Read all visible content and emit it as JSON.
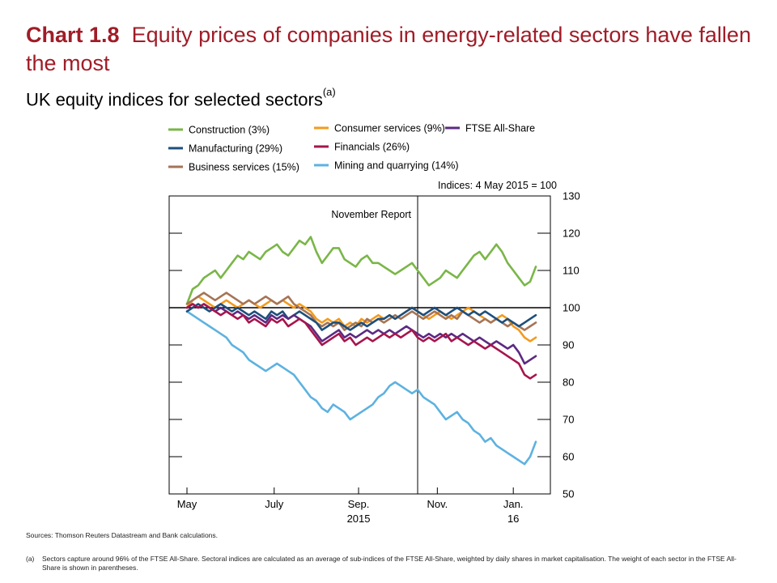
{
  "header": {
    "chart_number": "Chart 1.8",
    "title": "Equity prices of companies in energy-related sectors have fallen the most",
    "subtitle": "UK equity indices for selected sectors",
    "subtitle_note": "(a)"
  },
  "notes": {
    "sources": "Sources:  Thomson Reuters Datastream and Bank calculations.",
    "footnote_mark": "(a)",
    "footnote_text": "Sectors capture around 96% of the FTSE All-Share.  Sectoral indices are calculated as an average of sub-indices of the FTSE All-Share, weighted by daily shares in market capitalisation.  The weight of each sector in the FTSE All-Share is shown in parentheses."
  },
  "chart_data": {
    "type": "line",
    "x_unit": "week",
    "x_start": "2015-05-01",
    "units_label": "Indices:  4 May 2015 = 100",
    "annotation": "November Report",
    "annotation_x": 41,
    "ylim": [
      50,
      130
    ],
    "yticks": [
      50,
      60,
      70,
      80,
      90,
      100,
      110,
      120,
      130
    ],
    "xlim": [
      0,
      62
    ],
    "x_tick_labels": [
      {
        "x": 0,
        "label": "May"
      },
      {
        "x": 15.5,
        "label": "July"
      },
      {
        "x": 30.5,
        "label": "Sep."
      },
      {
        "x": 44.5,
        "label": "Nov."
      },
      {
        "x": 58,
        "label": "Jan."
      }
    ],
    "x_year_labels": [
      {
        "x": 30.5,
        "label": "2015"
      },
      {
        "x": 58,
        "label": "16"
      }
    ],
    "reference_line": 100,
    "legend_position": "top",
    "series": [
      {
        "name": "Construction (3%)",
        "color": "#7ab648",
        "values": [
          101,
          105,
          106,
          108,
          109,
          110,
          108,
          110,
          112,
          114,
          113,
          115,
          114,
          113,
          115,
          116,
          117,
          115,
          114,
          116,
          118,
          117,
          119,
          115,
          112,
          114,
          116,
          116,
          113,
          112,
          111,
          113,
          114,
          112,
          112,
          111,
          110,
          109,
          110,
          111,
          112,
          110,
          108,
          106,
          107,
          108,
          110,
          109,
          108,
          110,
          112,
          114,
          115,
          113,
          115,
          117,
          115,
          112,
          110,
          108,
          106,
          107,
          111
        ]
      },
      {
        "name": "Manufacturing (29%)",
        "color": "#1d4f7c",
        "values": [
          99,
          100,
          101,
          100,
          99,
          100,
          101,
          100,
          99,
          100,
          99,
          98,
          99,
          98,
          97,
          99,
          98,
          99,
          97,
          98,
          99,
          98,
          97,
          96,
          94,
          95,
          96,
          96,
          95,
          94,
          95,
          96,
          95,
          96,
          97,
          97,
          98,
          97,
          98,
          99,
          100,
          99,
          98,
          99,
          100,
          99,
          98,
          99,
          100,
          99,
          98,
          99,
          98,
          99,
          98,
          97,
          96,
          97,
          96,
          95,
          96,
          97,
          98
        ]
      },
      {
        "name": "Business services (15%)",
        "color": "#a57456",
        "values": [
          101,
          102,
          103,
          104,
          103,
          102,
          103,
          104,
          103,
          102,
          101,
          102,
          101,
          102,
          103,
          102,
          101,
          102,
          103,
          101,
          100,
          99,
          98,
          96,
          95,
          96,
          95,
          96,
          94,
          95,
          96,
          95,
          97,
          96,
          97,
          96,
          97,
          98,
          97,
          98,
          99,
          98,
          97,
          98,
          99,
          98,
          97,
          98,
          97,
          99,
          98,
          97,
          96,
          97,
          96,
          97,
          96,
          95,
          96,
          95,
          94,
          95,
          96
        ]
      },
      {
        "name": "Consumer services (9%)",
        "color": "#f39b1e",
        "values": [
          100,
          102,
          103,
          102,
          101,
          100,
          101,
          102,
          101,
          100,
          101,
          102,
          101,
          100,
          101,
          102,
          101,
          102,
          101,
          100,
          101,
          100,
          99,
          97,
          96,
          97,
          96,
          97,
          95,
          96,
          95,
          97,
          96,
          97,
          98,
          97,
          98,
          97,
          98,
          99,
          100,
          99,
          98,
          97,
          98,
          99,
          98,
          97,
          98,
          99,
          100,
          99,
          98,
          97,
          96,
          97,
          98,
          97,
          95,
          94,
          92,
          91,
          92
        ]
      },
      {
        "name": "Financials (26%)",
        "color": "#a6154d",
        "values": [
          100,
          101,
          100,
          101,
          100,
          99,
          98,
          99,
          98,
          97,
          98,
          96,
          97,
          96,
          95,
          97,
          96,
          97,
          95,
          96,
          97,
          96,
          94,
          92,
          90,
          91,
          92,
          93,
          91,
          92,
          90,
          91,
          92,
          91,
          92,
          93,
          92,
          93,
          92,
          93,
          94,
          92,
          91,
          92,
          91,
          92,
          93,
          91,
          92,
          91,
          90,
          91,
          90,
          89,
          90,
          89,
          88,
          87,
          86,
          85,
          82,
          81,
          82
        ]
      },
      {
        "name": "FTSE All-Share",
        "color": "#5c2a82",
        "values": [
          100,
          101,
          100,
          101,
          100,
          99,
          100,
          99,
          98,
          99,
          98,
          97,
          98,
          97,
          96,
          98,
          97,
          98,
          97,
          98,
          97,
          96,
          95,
          93,
          91,
          92,
          93,
          94,
          92,
          93,
          92,
          93,
          94,
          93,
          94,
          93,
          94,
          93,
          94,
          95,
          94,
          93,
          92,
          93,
          92,
          93,
          92,
          93,
          92,
          93,
          92,
          91,
          92,
          91,
          90,
          91,
          90,
          89,
          90,
          88,
          85,
          86,
          87
        ]
      },
      {
        "name": "Mining and quarrying (14%)",
        "color": "#5db2e0",
        "values": [
          99,
          98,
          97,
          96,
          95,
          94,
          93,
          92,
          90,
          89,
          88,
          86,
          85,
          84,
          83,
          84,
          85,
          84,
          83,
          82,
          80,
          78,
          76,
          75,
          73,
          72,
          74,
          73,
          72,
          70,
          71,
          72,
          73,
          74,
          76,
          77,
          79,
          80,
          79,
          78,
          77,
          78,
          76,
          75,
          74,
          72,
          70,
          71,
          72,
          70,
          69,
          67,
          66,
          64,
          65,
          63,
          62,
          61,
          60,
          59,
          58,
          60,
          64
        ]
      }
    ]
  }
}
